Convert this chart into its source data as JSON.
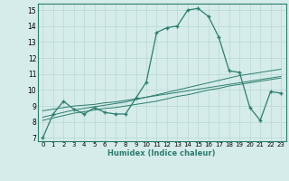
{
  "xlabel": "Humidex (Indice chaleur)",
  "x_values": [
    0,
    1,
    2,
    3,
    4,
    5,
    6,
    7,
    8,
    9,
    10,
    11,
    12,
    13,
    14,
    15,
    16,
    17,
    18,
    19,
    20,
    21,
    22,
    23
  ],
  "main_line": [
    7.0,
    8.5,
    9.3,
    8.8,
    8.5,
    8.9,
    8.6,
    8.5,
    8.5,
    9.5,
    10.5,
    13.6,
    13.9,
    14.0,
    15.0,
    15.1,
    14.6,
    13.3,
    11.2,
    11.1,
    8.9,
    8.1,
    9.9,
    9.8
  ],
  "regression1": [
    8.1,
    8.25,
    8.4,
    8.55,
    8.65,
    8.75,
    8.85,
    8.9,
    9.0,
    9.1,
    9.2,
    9.3,
    9.45,
    9.6,
    9.7,
    9.85,
    10.0,
    10.1,
    10.25,
    10.35,
    10.45,
    10.55,
    10.65,
    10.75
  ],
  "regression2": [
    8.3,
    8.45,
    8.6,
    8.75,
    8.85,
    8.95,
    9.05,
    9.15,
    9.25,
    9.4,
    9.55,
    9.7,
    9.85,
    10.0,
    10.15,
    10.3,
    10.45,
    10.6,
    10.75,
    10.9,
    11.0,
    11.1,
    11.2,
    11.3
  ],
  "regression3": [
    8.7,
    8.8,
    8.9,
    9.0,
    9.05,
    9.1,
    9.2,
    9.25,
    9.35,
    9.45,
    9.55,
    9.65,
    9.75,
    9.85,
    9.95,
    10.05,
    10.15,
    10.25,
    10.35,
    10.45,
    10.55,
    10.65,
    10.75,
    10.85
  ],
  "line_color": "#2d7d6e",
  "bg_color": "#d5ecea",
  "grid_color": "#b8d8d4",
  "ylim_min": 6.8,
  "ylim_max": 15.4,
  "yticks": [
    7,
    8,
    9,
    10,
    11,
    12,
    13,
    14,
    15
  ],
  "xticks": [
    0,
    1,
    2,
    3,
    4,
    5,
    6,
    7,
    8,
    9,
    10,
    11,
    12,
    13,
    14,
    15,
    16,
    17,
    18,
    19,
    20,
    21,
    22,
    23
  ]
}
